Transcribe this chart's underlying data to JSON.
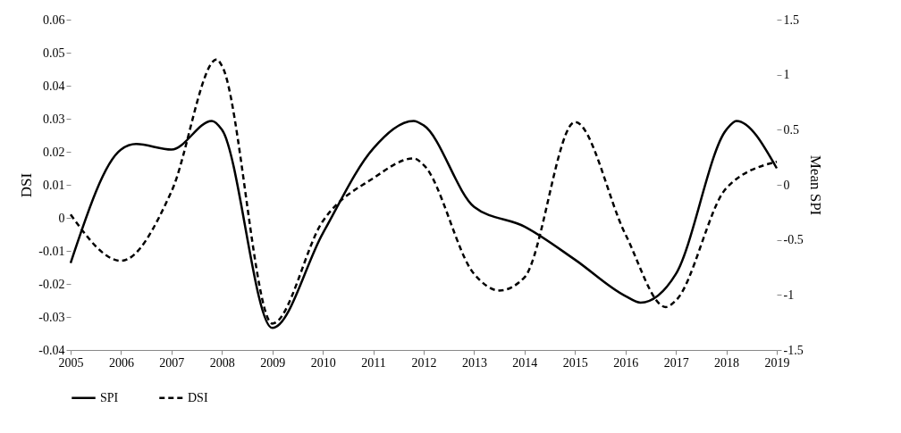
{
  "chart_data": {
    "type": "line",
    "ylabel": "DSI",
    "y2label": "Mean SPI",
    "xlim": [
      2005,
      2019
    ],
    "xticks": [
      2005,
      2006,
      2007,
      2008,
      2009,
      2010,
      2011,
      2012,
      2013,
      2014,
      2015,
      2016,
      2017,
      2018,
      2019
    ],
    "ylim": [
      -0.04,
      0.06
    ],
    "yticks": [
      -0.04,
      -0.03,
      -0.02,
      -0.01,
      0,
      0.01,
      0.02,
      0.03,
      0.04,
      0.05,
      0.06
    ],
    "y2lim": [
      -1.5,
      1.5
    ],
    "y2ticks": [
      -1.5,
      -1,
      -0.5,
      0,
      0.5,
      1,
      1.5
    ],
    "grid": false,
    "legend": "bottom",
    "marker": "none",
    "series": [
      {
        "name": "SPI",
        "color": "#000000",
        "axis": "y2",
        "line_style": "solid",
        "x": [
          2005,
          2006,
          2006.3,
          2007,
          2007.8,
          2008,
          2009,
          2010,
          2011,
          2011.8,
          2012,
          2013,
          2014,
          2015,
          2016,
          2016.3,
          2017,
          2018,
          2018.2,
          2019
        ],
        "values": [
          -0.71,
          0.32,
          0.37,
          0.32,
          0.58,
          0.5,
          -1.3,
          -0.44,
          0.33,
          0.58,
          0.54,
          -0.2,
          -0.38,
          -0.68,
          -1.01,
          -1.07,
          -0.81,
          0.5,
          0.58,
          0.15
        ]
      },
      {
        "name": "DSI",
        "color": "#000000",
        "axis": "y",
        "line_style": "dashed",
        "x": [
          2005,
          2006,
          2007,
          2007.9,
          2008,
          2009,
          2010,
          2011,
          2011.8,
          2012,
          2013,
          2013.5,
          2014,
          2015,
          2016,
          2016.8,
          2017,
          2018,
          2019
        ],
        "values": [
          0.001,
          -0.013,
          0.008,
          0.048,
          0.046,
          -0.032,
          -0.001,
          0.012,
          0.018,
          0.016,
          -0.017,
          -0.022,
          -0.018,
          0.029,
          -0.005,
          -0.027,
          -0.025,
          0.009,
          0.017
        ]
      }
    ]
  }
}
